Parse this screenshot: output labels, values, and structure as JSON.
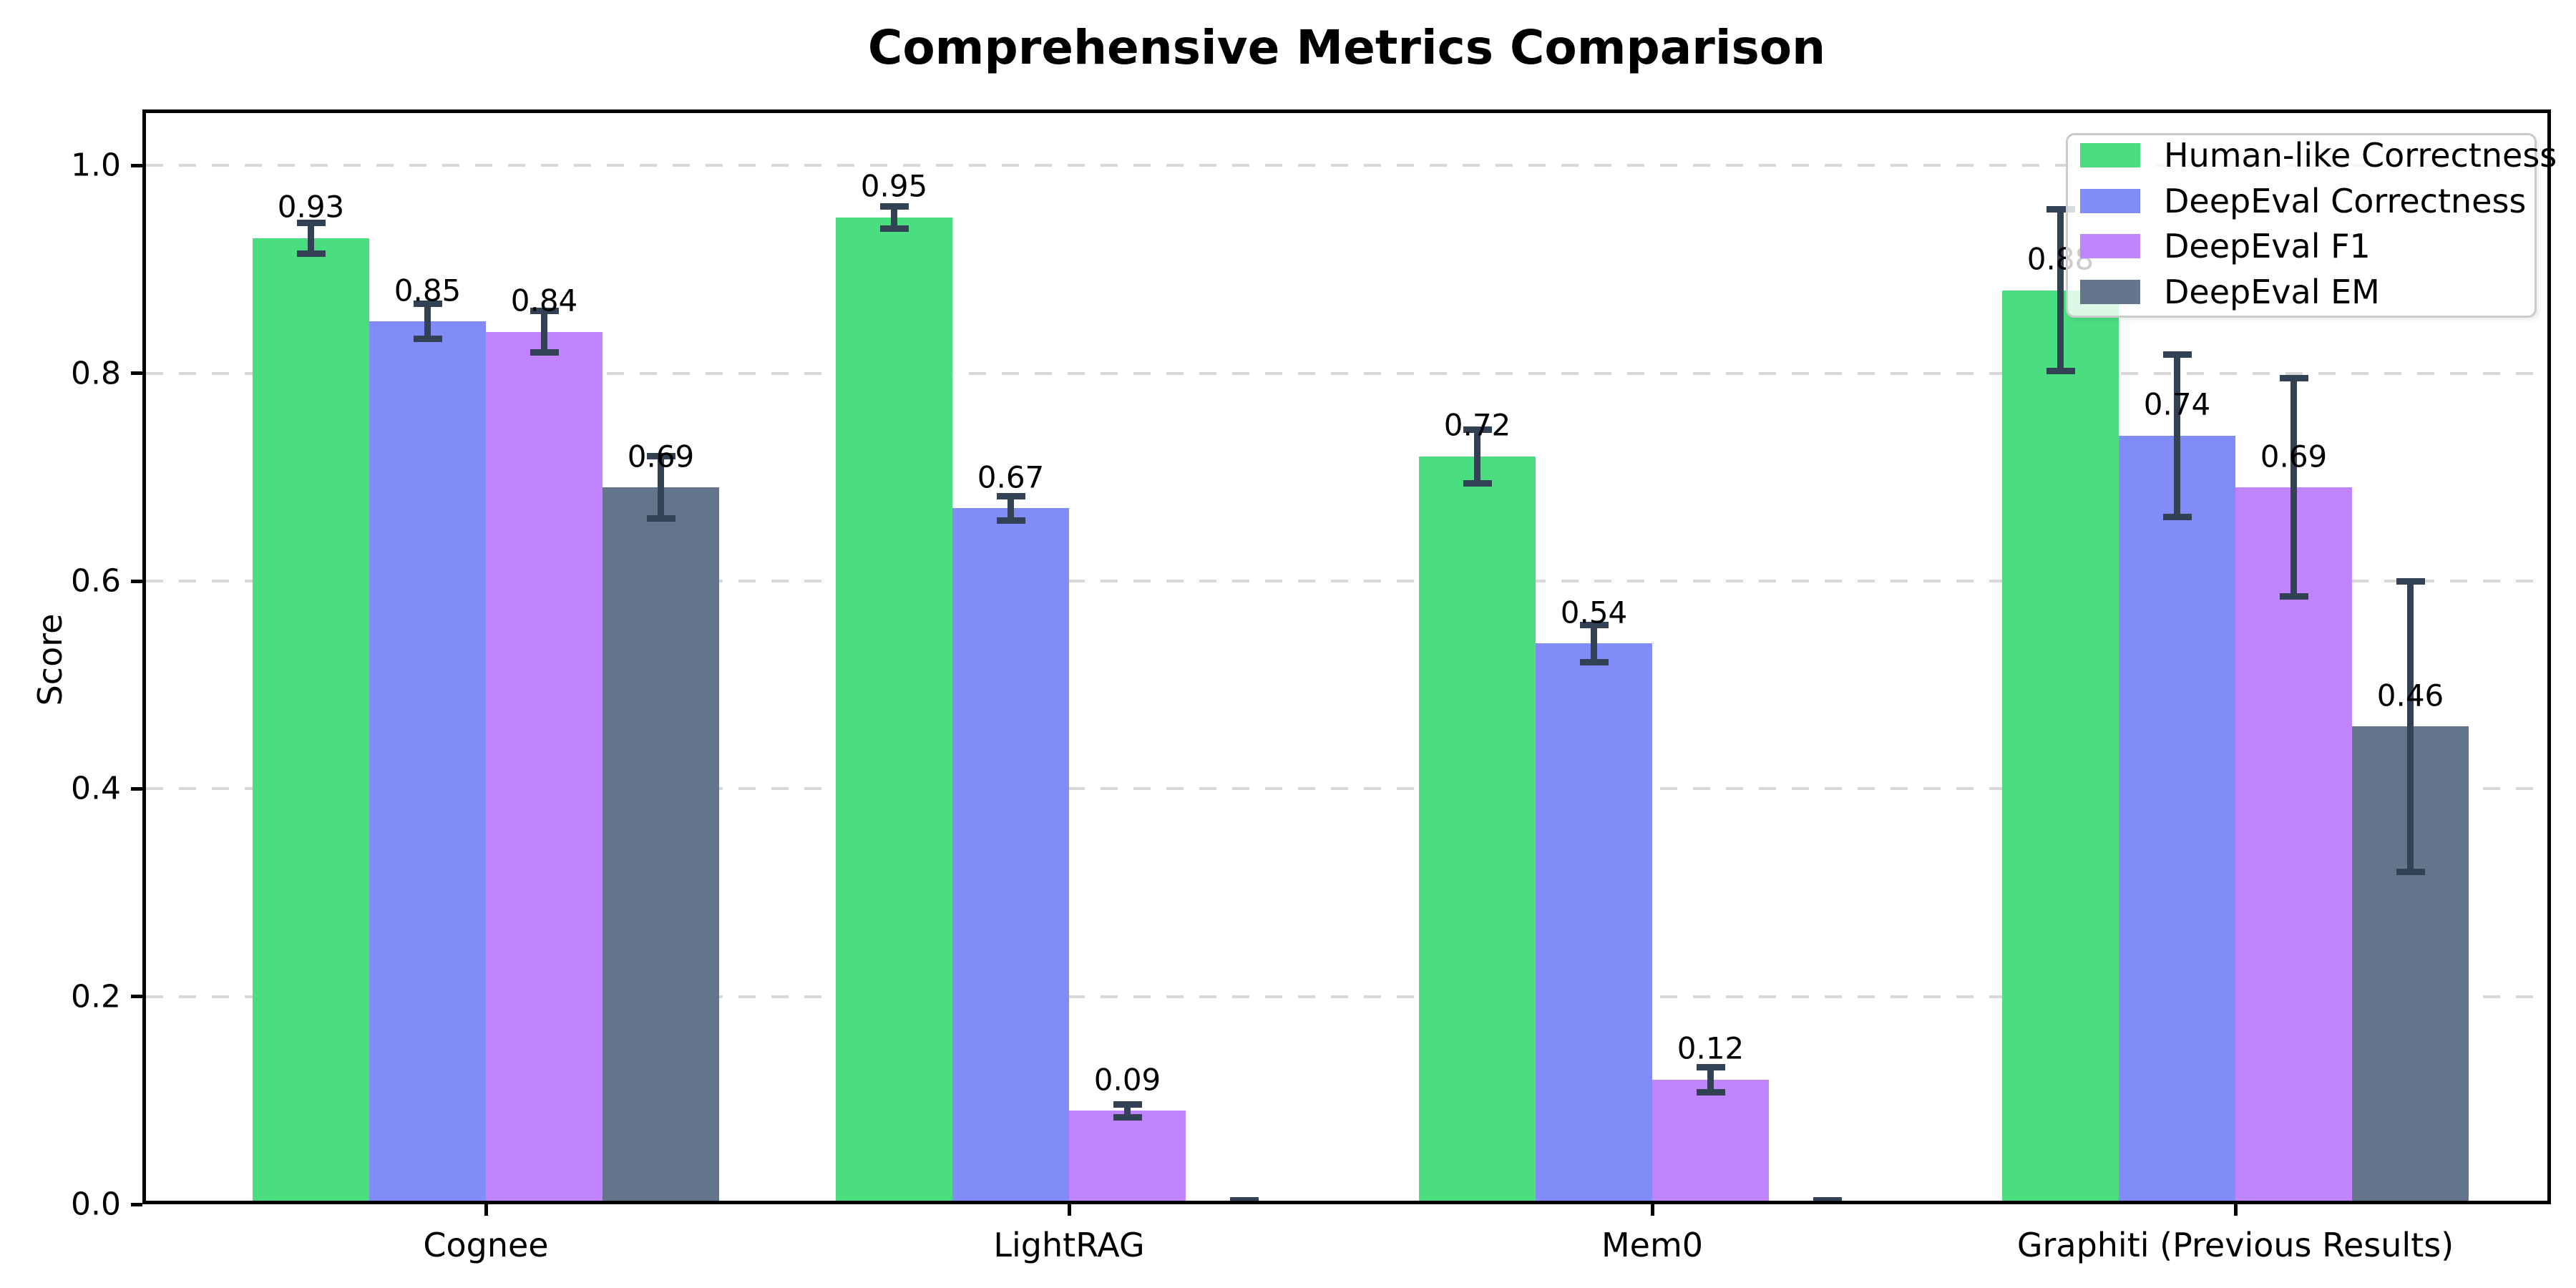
{
  "chart_data": {
    "type": "bar",
    "title": "Comprehensive Metrics Comparison",
    "xlabel": "",
    "ylabel": "Score",
    "categories": [
      "Cognee",
      "LightRAG",
      "Mem0",
      "Graphiti (Previous Results)"
    ],
    "series": [
      {
        "name": "Human-like Correctness",
        "color": "#4ade80",
        "values": [
          0.93,
          0.95,
          0.72,
          0.88
        ],
        "errors": [
          0.015,
          0.011,
          0.026,
          0.078
        ],
        "value_labels": [
          "0.93",
          "0.95",
          "0.72",
          "0.88"
        ]
      },
      {
        "name": "DeepEval Correctness",
        "color": "#818cf8",
        "values": [
          0.85,
          0.67,
          0.54,
          0.74
        ],
        "errors": [
          0.017,
          0.012,
          0.018,
          0.078
        ],
        "value_labels": [
          "0.85",
          "0.67",
          "0.54",
          "0.74"
        ]
      },
      {
        "name": "DeepEval F1",
        "color": "#c084fc",
        "values": [
          0.84,
          0.09,
          0.12,
          0.69
        ],
        "errors": [
          0.02,
          0.006,
          0.012,
          0.105
        ],
        "value_labels": [
          "0.84",
          "0.09",
          "0.12",
          "0.69"
        ]
      },
      {
        "name": "DeepEval EM",
        "color": "#64748b",
        "values": [
          0.69,
          0.0,
          0.0,
          0.46
        ],
        "errors": [
          0.03,
          0.004,
          0.004,
          0.14
        ],
        "value_labels": [
          "0.69",
          "",
          "",
          "0.46"
        ]
      }
    ],
    "yticks": [
      0.0,
      0.2,
      0.4,
      0.6,
      0.8,
      1.0
    ],
    "ytick_labels": [
      "0.0",
      "0.2",
      "0.4",
      "0.6",
      "0.8",
      "1.0"
    ],
    "ylim": [
      0,
      1.054
    ],
    "grid": "horizontal-dashed",
    "legend_position": "upper right",
    "error_bar_color": "#334155"
  }
}
